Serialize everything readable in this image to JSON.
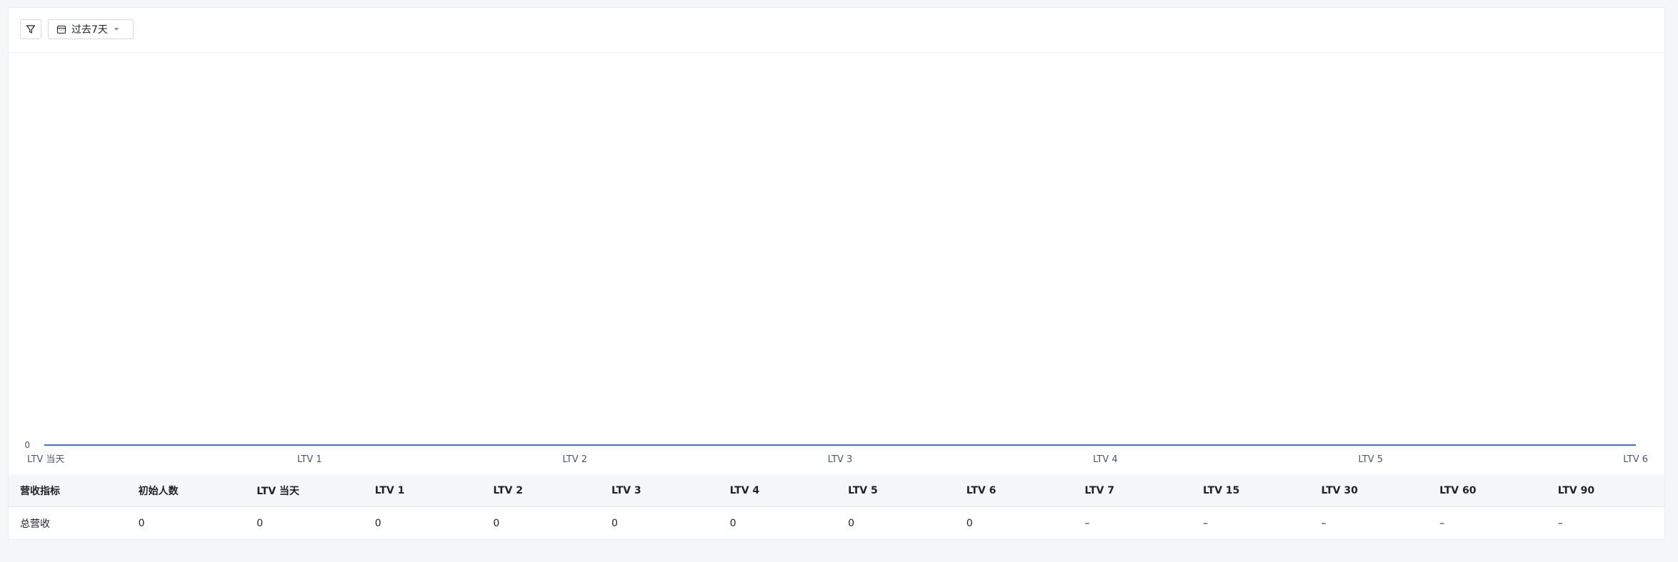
{
  "toolbar": {
    "date_range_label": "过去7天"
  },
  "colors": {
    "accent": "#3370ff",
    "text": "#1f2329",
    "axis_text": "#4e5969"
  },
  "chart_data": {
    "type": "line",
    "categories": [
      "LTV 当天",
      "LTV 1",
      "LTV 2",
      "LTV 3",
      "LTV 4",
      "LTV 5",
      "LTV 6"
    ],
    "series": [
      {
        "name": "总营收",
        "values": [
          0,
          0,
          0,
          0,
          0,
          0,
          0
        ]
      }
    ],
    "y_ticks": [
      "0"
    ],
    "ylim": [
      0,
      1
    ],
    "title": "",
    "xlabel": "",
    "ylabel": ""
  },
  "table": {
    "headers": [
      "营收指标",
      "初始人数",
      "LTV 当天",
      "LTV 1",
      "LTV 2",
      "LTV 3",
      "LTV 4",
      "LTV 5",
      "LTV 6",
      "LTV 7",
      "LTV 15",
      "LTV 30",
      "LTV 60",
      "LTV 90"
    ],
    "rows": [
      [
        "总营收",
        "0",
        "0",
        "0",
        "0",
        "0",
        "0",
        "0",
        "0",
        "–",
        "–",
        "–",
        "–",
        "–"
      ]
    ]
  }
}
